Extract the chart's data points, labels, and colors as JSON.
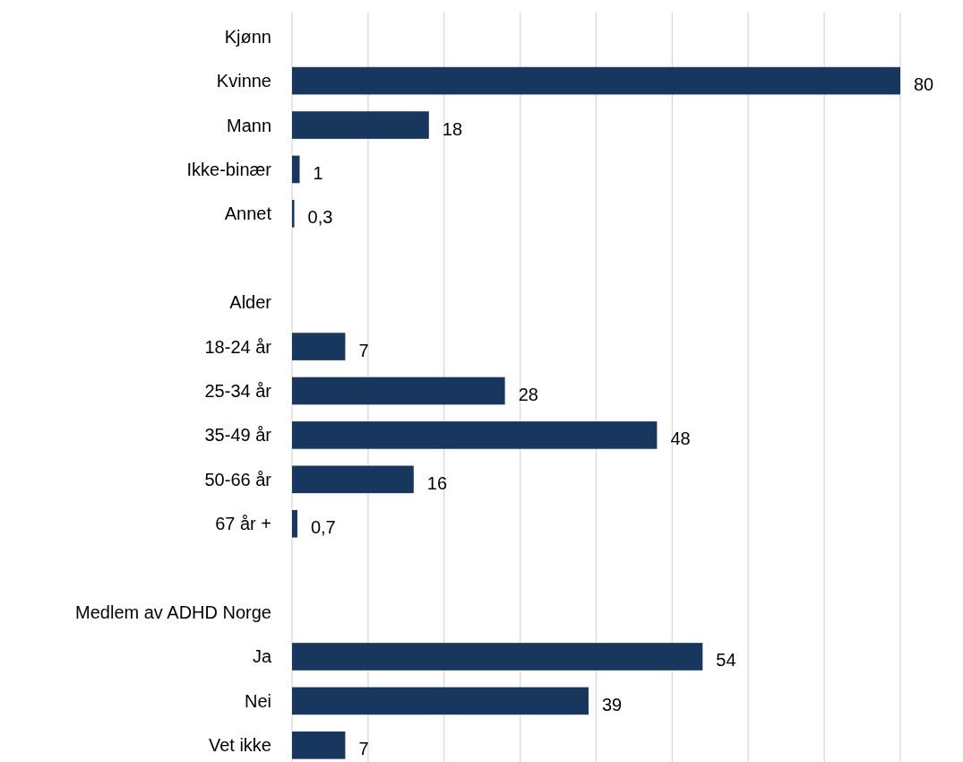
{
  "chart_data": {
    "type": "bar",
    "orientation": "horizontal",
    "categories": [
      "Kjønn",
      "Kvinne",
      "Mann",
      "Ikke-binær",
      "Annet",
      null,
      "Alder",
      "18-24 år",
      "25-34 år",
      "35-49 år",
      "50-66 år",
      "67 år +",
      null,
      "Medlem av ADHD Norge",
      "Ja",
      "Nei",
      "Vet ikke"
    ],
    "values": [
      null,
      80,
      18,
      1,
      0.3,
      null,
      null,
      7,
      28,
      48,
      16,
      0.7,
      null,
      null,
      54,
      39,
      7
    ],
    "value_labels": [
      null,
      "80",
      "18",
      "1",
      "0,3",
      null,
      null,
      "7",
      "28",
      "48",
      "16",
      "0,7",
      null,
      null,
      "54",
      "39",
      "7"
    ],
    "color": "#17375e",
    "xlim": [
      0,
      80
    ],
    "xticks": [
      {
        "value": 0,
        "label": null
      },
      {
        "value": 10,
        "label": null
      },
      {
        "value": 20,
        "label": null
      },
      {
        "value": 30,
        "label": null
      },
      {
        "value": 40,
        "label": null
      },
      {
        "value": 50,
        "label": null
      },
      {
        "value": 60,
        "label": null
      },
      {
        "value": 70,
        "label": null
      },
      {
        "value": 80,
        "label": null
      }
    ],
    "grid": "x",
    "tick_labels": "y"
  }
}
